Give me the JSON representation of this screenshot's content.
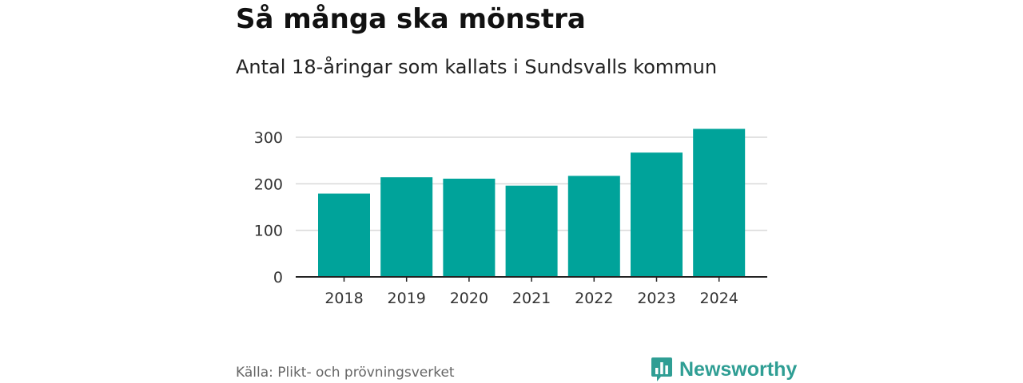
{
  "header": {
    "title": "Så många ska mönstra",
    "subtitle": "Antal 18-åringar som kallats i Sundsvalls kommun"
  },
  "footer": {
    "source": "Källa: Plikt- och prövningsverket",
    "brand": "Newsworthy"
  },
  "colors": {
    "bar": "#00a39a",
    "brand": "#2f9e94",
    "grid": "#d9d9d9",
    "axis": "#222222"
  },
  "chart_data": {
    "type": "bar",
    "title": "Så många ska mönstra",
    "subtitle": "Antal 18-åringar som kallats i Sundsvalls kommun",
    "categories": [
      "2018",
      "2019",
      "2020",
      "2021",
      "2022",
      "2023",
      "2024"
    ],
    "values": [
      179,
      214,
      211,
      196,
      217,
      267,
      318
    ],
    "xlabel": "",
    "ylabel": "",
    "ylim": [
      0,
      300
    ],
    "yticks": [
      0,
      100,
      200,
      300
    ],
    "grid": true,
    "legend": "none"
  }
}
